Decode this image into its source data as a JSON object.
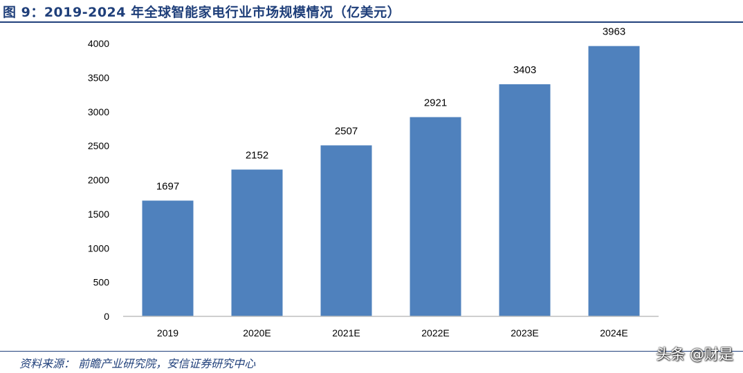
{
  "figure": {
    "title": "图 9：2019-2024 年全球智能家电行业市场规模情况（亿美元）",
    "source": "资料来源： 前瞻产业研究院，安信证券研究中心",
    "watermark": "头条 @财是"
  },
  "colors": {
    "bar": "#4f81bd",
    "axis": "#bfbfbf",
    "title": "#1f3f7a"
  },
  "chart_data": {
    "type": "bar",
    "title": "2019-2024 年全球智能家电行业市场规模情况（亿美元）",
    "categories": [
      "2019",
      "2020E",
      "2021E",
      "2022E",
      "2023E",
      "2024E"
    ],
    "values": [
      1697,
      2152,
      2507,
      2921,
      3403,
      3963
    ],
    "xlabel": "",
    "ylabel": "",
    "ylim": [
      0,
      4000
    ],
    "yticks": [
      0,
      500,
      1000,
      1500,
      2000,
      2500,
      3000,
      3500,
      4000
    ],
    "grid": false,
    "legend": "none",
    "data_labels": true
  }
}
